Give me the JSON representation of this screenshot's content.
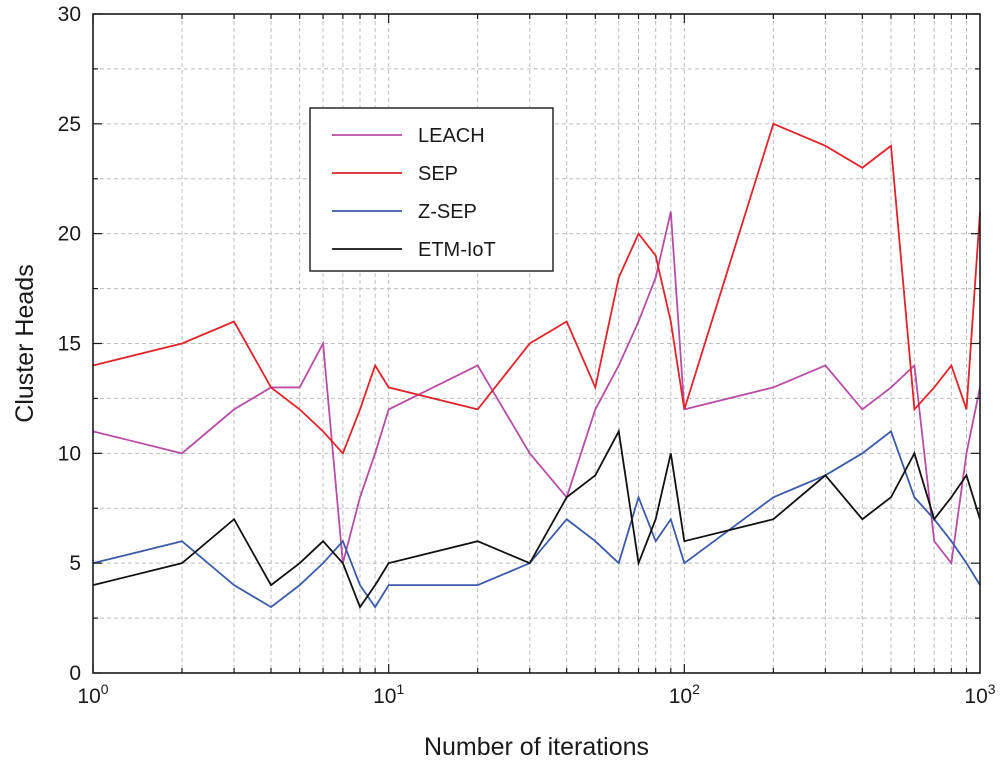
{
  "chart_data": {
    "type": "line",
    "title": "",
    "xlabel": "Number of iterations",
    "ylabel": "Cluster Heads",
    "xscale": "log",
    "xlim": [
      1,
      1000
    ],
    "ylim": [
      0,
      30
    ],
    "x_ticks": [
      {
        "base": "10",
        "exp": "0",
        "value": 1
      },
      {
        "base": "10",
        "exp": "1",
        "value": 10
      },
      {
        "base": "10",
        "exp": "2",
        "value": 100
      },
      {
        "base": "10",
        "exp": "3",
        "value": 1000
      }
    ],
    "y_ticks": [
      "0",
      "5",
      "10",
      "15",
      "20",
      "25",
      "30"
    ],
    "grid": true,
    "legend_position": "upper-left-center",
    "series": [
      {
        "name": "LEACH",
        "color": "#b84da6",
        "x": [
          1,
          2,
          3,
          4,
          5,
          6,
          7,
          8,
          9,
          10,
          20,
          30,
          40,
          50,
          60,
          70,
          80,
          90,
          100,
          200,
          300,
          400,
          500,
          600,
          700,
          800,
          900,
          1000
        ],
        "y": [
          11,
          10,
          12,
          13,
          13,
          15,
          5,
          8,
          10,
          12,
          14,
          10,
          8,
          12,
          14,
          16,
          18,
          21,
          12,
          13,
          14,
          12,
          13,
          14,
          6,
          5,
          10,
          13
        ]
      },
      {
        "name": "SEP",
        "color": "#e0242a",
        "x": [
          1,
          2,
          3,
          4,
          5,
          6,
          7,
          8,
          9,
          10,
          20,
          30,
          40,
          50,
          60,
          70,
          80,
          90,
          100,
          200,
          300,
          400,
          500,
          600,
          700,
          800,
          900,
          1000
        ],
        "y": [
          14,
          15,
          16,
          13,
          12,
          11,
          10,
          12,
          14,
          13,
          12,
          15,
          16,
          13,
          18,
          20,
          19,
          16,
          12,
          25,
          24,
          23,
          24,
          12,
          13,
          14,
          12,
          21
        ]
      },
      {
        "name": "Z-SEP",
        "color": "#3b5aa8",
        "x": [
          1,
          2,
          3,
          4,
          5,
          6,
          7,
          8,
          9,
          10,
          20,
          30,
          40,
          50,
          60,
          70,
          80,
          90,
          100,
          200,
          300,
          400,
          500,
          600,
          700,
          800,
          900,
          1000
        ],
        "y": [
          5,
          6,
          4,
          3,
          4,
          5,
          6,
          4,
          3,
          4,
          4,
          5,
          7,
          6,
          5,
          8,
          6,
          7,
          5,
          8,
          9,
          10,
          11,
          8,
          7,
          6,
          5,
          4
        ]
      },
      {
        "name": "ETM-IoT",
        "color": "#111111",
        "x": [
          1,
          2,
          3,
          4,
          5,
          6,
          7,
          8,
          9,
          10,
          20,
          30,
          40,
          50,
          60,
          70,
          80,
          90,
          100,
          200,
          300,
          400,
          500,
          600,
          700,
          800,
          900,
          1000
        ],
        "y": [
          4,
          5,
          7,
          4,
          5,
          6,
          5,
          3,
          4,
          5,
          6,
          5,
          8,
          9,
          11,
          5,
          7,
          10,
          6,
          7,
          9,
          7,
          8,
          10,
          7,
          8,
          9,
          7
        ]
      }
    ]
  }
}
